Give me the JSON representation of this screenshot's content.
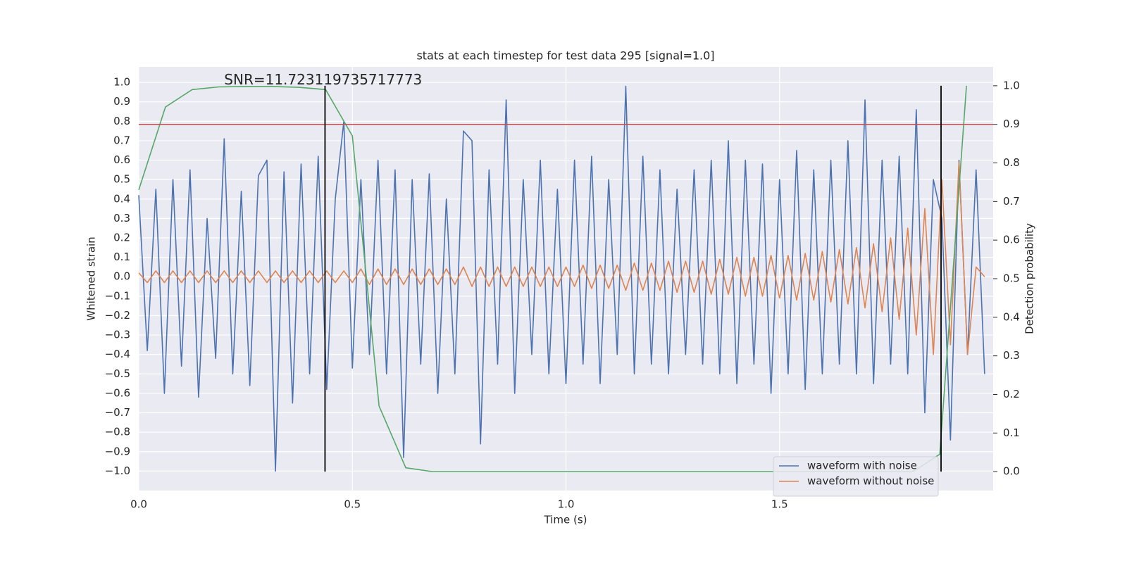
{
  "chart_data": {
    "type": "line",
    "title": "stats at each timestep for test data 295 [signal=1.0]",
    "xlabel": "Time (s)",
    "ylabel": "Whitened strain",
    "y2label": "Detection probability",
    "annotation": {
      "text": "SNR=11.723119735717773",
      "x": 0.2,
      "y": 1.01
    },
    "xlim": [
      0,
      2.0
    ],
    "ylim": [
      -1.1,
      1.08
    ],
    "y2lim": [
      -0.049,
      1.049
    ],
    "xticks": [
      {
        "value": 0,
        "label": "0.0"
      },
      0.5,
      {
        "value": 1,
        "label": "1.0"
      },
      1.5
    ],
    "yticks": [
      {
        "value": -1.0,
        "label": "−1.0"
      },
      {
        "value": -0.9,
        "label": "−0.9"
      },
      {
        "value": -0.8,
        "label": "−0.8"
      },
      {
        "value": -0.7,
        "label": "−0.7"
      },
      {
        "value": -0.6,
        "label": "−0.6"
      },
      {
        "value": -0.5,
        "label": "−0.5"
      },
      {
        "value": -0.4,
        "label": "−0.4"
      },
      {
        "value": -0.3,
        "label": "−0.3"
      },
      {
        "value": -0.2,
        "label": "−0.2"
      },
      {
        "value": -0.1,
        "label": "−0.1"
      },
      {
        "value": 0,
        "label": "0.0"
      },
      0.1,
      0.2,
      0.3,
      0.4,
      0.5,
      0.6,
      0.7,
      0.8,
      0.9,
      {
        "value": 1,
        "label": "1.0"
      }
    ],
    "y2ticks": [
      {
        "value": 0,
        "label": "0.0"
      },
      0.1,
      0.2,
      0.3,
      0.4,
      0.5,
      0.6,
      0.7,
      0.8,
      0.9,
      {
        "value": 1,
        "label": "1.0"
      }
    ],
    "grid": true,
    "legend": "lower right",
    "hline": {
      "y2": 0.9,
      "color": "#c44e52"
    },
    "vlines": {
      "x": [
        0.436,
        1.878
      ],
      "y2": [
        0,
        1.0
      ],
      "color": "#000000"
    },
    "series": [
      {
        "name": "waveform with noise",
        "color": "#4c72b0",
        "x": [
          0,
          0.02,
          0.04,
          0.06,
          0.08,
          0.1,
          0.12,
          0.14,
          0.16,
          0.18,
          0.2,
          0.22,
          0.24,
          0.26,
          0.28,
          0.3,
          0.32,
          0.34,
          0.36,
          0.38,
          0.4,
          0.42,
          0.44,
          0.46,
          0.48,
          0.5,
          0.52,
          0.54,
          0.56,
          0.58,
          0.6,
          0.62,
          0.64,
          0.66,
          0.68,
          0.7,
          0.72,
          0.74,
          0.76,
          0.78,
          0.8,
          0.82,
          0.84,
          0.86,
          0.88,
          0.9,
          0.92,
          0.94,
          0.96,
          0.98,
          1,
          1.02,
          1.04,
          1.06,
          1.08,
          1.1,
          1.12,
          1.14,
          1.16,
          1.18,
          1.2,
          1.22,
          1.24,
          1.26,
          1.28,
          1.3,
          1.32,
          1.34,
          1.36,
          1.38,
          1.4,
          1.42,
          1.44,
          1.46,
          1.48,
          1.5,
          1.52,
          1.54,
          1.56,
          1.58,
          1.6,
          1.62,
          1.64,
          1.66,
          1.68,
          1.7,
          1.72,
          1.74,
          1.76,
          1.78,
          1.8,
          1.82,
          1.84,
          1.86,
          1.88,
          1.9,
          1.92,
          1.94,
          1.96,
          1.98
        ],
        "values": [
          0.42,
          -0.38,
          0.45,
          -0.6,
          0.5,
          -0.46,
          0.55,
          -0.62,
          0.3,
          -0.42,
          0.71,
          -0.5,
          0.44,
          -0.56,
          0.52,
          0.6,
          -1.0,
          0.54,
          -0.65,
          0.58,
          -0.5,
          0.62,
          -0.58,
          0.4,
          0.8,
          -0.47,
          0.5,
          -0.4,
          0.6,
          -0.5,
          0.55,
          -0.93,
          0.5,
          -0.45,
          0.53,
          -0.6,
          0.4,
          -0.5,
          0.75,
          0.7,
          -0.86,
          0.55,
          -0.45,
          0.91,
          -0.6,
          0.5,
          -0.4,
          0.6,
          -0.5,
          0.45,
          -0.55,
          0.6,
          -0.45,
          0.62,
          -0.55,
          0.5,
          -0.4,
          0.98,
          -0.5,
          0.62,
          -0.45,
          0.55,
          -0.5,
          0.45,
          -0.4,
          0.55,
          -0.45,
          0.6,
          -0.5,
          0.7,
          -0.55,
          0.6,
          -0.45,
          0.58,
          -0.6,
          0.5,
          -0.5,
          0.65,
          -0.58,
          0.55,
          -0.5,
          0.6,
          -0.45,
          0.7,
          -0.5,
          0.91,
          -0.55,
          0.6,
          -0.45,
          0.62,
          -0.5,
          0.86,
          -0.7,
          0.5,
          0.3,
          -0.84,
          0.6,
          -0.4,
          0.55,
          -0.5
        ]
      },
      {
        "name": "waveform without noise",
        "color": "#dd8452",
        "x": [
          0,
          0.02,
          0.04,
          0.06,
          0.08,
          0.1,
          0.12,
          0.14,
          0.16,
          0.18,
          0.2,
          0.22,
          0.24,
          0.26,
          0.28,
          0.3,
          0.32,
          0.34,
          0.36,
          0.38,
          0.4,
          0.42,
          0.44,
          0.46,
          0.48,
          0.5,
          0.52,
          0.54,
          0.56,
          0.58,
          0.6,
          0.62,
          0.64,
          0.66,
          0.68,
          0.7,
          0.72,
          0.74,
          0.76,
          0.78,
          0.8,
          0.82,
          0.84,
          0.86,
          0.88,
          0.9,
          0.92,
          0.94,
          0.96,
          0.98,
          1,
          1.02,
          1.04,
          1.06,
          1.08,
          1.1,
          1.12,
          1.14,
          1.16,
          1.18,
          1.2,
          1.22,
          1.24,
          1.26,
          1.28,
          1.3,
          1.32,
          1.34,
          1.36,
          1.38,
          1.4,
          1.42,
          1.44,
          1.46,
          1.48,
          1.5,
          1.52,
          1.54,
          1.56,
          1.58,
          1.6,
          1.62,
          1.64,
          1.66,
          1.68,
          1.7,
          1.72,
          1.74,
          1.76,
          1.78,
          1.8,
          1.82,
          1.84,
          1.86,
          1.88,
          1.9,
          1.92,
          1.94,
          1.96,
          1.98
        ],
        "values": [
          0.02,
          -0.03,
          0.03,
          -0.03,
          0.03,
          -0.03,
          0.03,
          -0.03,
          0.03,
          -0.03,
          0.03,
          -0.03,
          0.03,
          -0.03,
          0.03,
          -0.03,
          0.03,
          -0.03,
          0.03,
          -0.03,
          0.03,
          -0.03,
          0.03,
          -0.03,
          0.03,
          -0.03,
          0.04,
          -0.04,
          0.04,
          -0.04,
          0.04,
          -0.04,
          0.04,
          -0.04,
          0.04,
          -0.04,
          0.04,
          -0.04,
          0.05,
          -0.05,
          0.05,
          -0.05,
          0.05,
          -0.05,
          0.05,
          -0.05,
          0.05,
          -0.05,
          0.05,
          -0.05,
          0.05,
          -0.05,
          0.06,
          -0.06,
          0.06,
          -0.06,
          0.06,
          -0.07,
          0.07,
          -0.07,
          0.07,
          -0.07,
          0.08,
          -0.08,
          0.08,
          -0.08,
          0.08,
          -0.09,
          0.09,
          -0.09,
          0.1,
          -0.1,
          0.1,
          -0.1,
          0.11,
          -0.11,
          0.11,
          -0.12,
          0.12,
          -0.12,
          0.13,
          -0.13,
          0.14,
          -0.14,
          0.15,
          -0.16,
          0.17,
          -0.18,
          0.2,
          -0.22,
          0.25,
          -0.3,
          0.35,
          -0.4,
          0.5,
          -0.35,
          0.59,
          -0.4,
          0.05,
          0.0
        ]
      },
      {
        "name": "detection probability",
        "color": "#55a868",
        "axis": "y2",
        "legend": false,
        "x": [
          0,
          0.0625,
          0.125,
          0.1875,
          0.25,
          0.3125,
          0.375,
          0.4375,
          0.5,
          0.5625,
          0.625,
          0.6875,
          0.75,
          0.8125,
          0.875,
          0.9375,
          1,
          1.0625,
          1.125,
          1.1875,
          1.25,
          1.3125,
          1.375,
          1.4375,
          1.5,
          1.5625,
          1.625,
          1.6875,
          1.75,
          1.8125,
          1.875,
          1.9375
        ],
        "values": [
          0.73,
          0.945,
          0.99,
          0.997,
          0.998,
          0.998,
          0.996,
          0.99,
          0.87,
          0.17,
          0.01,
          0,
          0,
          0,
          0,
          0,
          0,
          0,
          0,
          0,
          0,
          0,
          0,
          0,
          0,
          0,
          0,
          0,
          0,
          0,
          0.045,
          1.0
        ]
      }
    ]
  }
}
